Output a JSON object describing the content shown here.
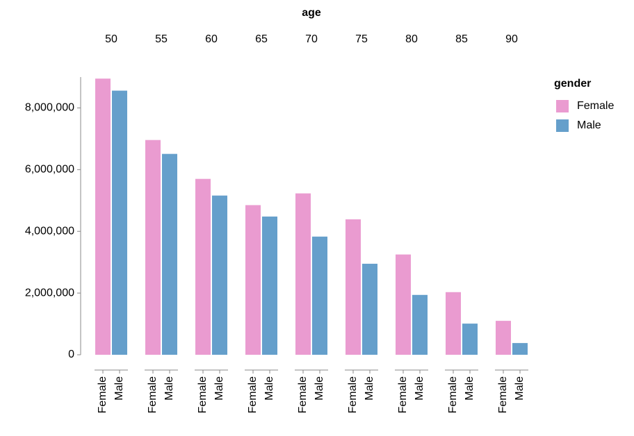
{
  "chart_data": {
    "type": "bar",
    "title": "age",
    "legend_title": "gender",
    "categories": [
      50,
      55,
      60,
      65,
      70,
      75,
      80,
      85,
      90
    ],
    "series": [
      {
        "name": "Female",
        "color": "#ea9bd0",
        "values": [
          8950000,
          6960000,
          5700000,
          4850000,
          5230000,
          4390000,
          3250000,
          2030000,
          1100000
        ]
      },
      {
        "name": "Male",
        "color": "#659fcb",
        "values": [
          8560000,
          6510000,
          5160000,
          4480000,
          3830000,
          2950000,
          1940000,
          1010000,
          380000
        ]
      }
    ],
    "ylim": [
      0,
      9000000
    ],
    "yticks": [
      0,
      {
        "value": 2000000,
        "label": "2,000,000"
      },
      {
        "value": 4000000,
        "label": "4,000,000"
      },
      {
        "value": 6000000,
        "label": "6,000,000"
      },
      {
        "value": 8000000,
        "label": "8,000,000"
      }
    ],
    "legend_position": "right"
  }
}
